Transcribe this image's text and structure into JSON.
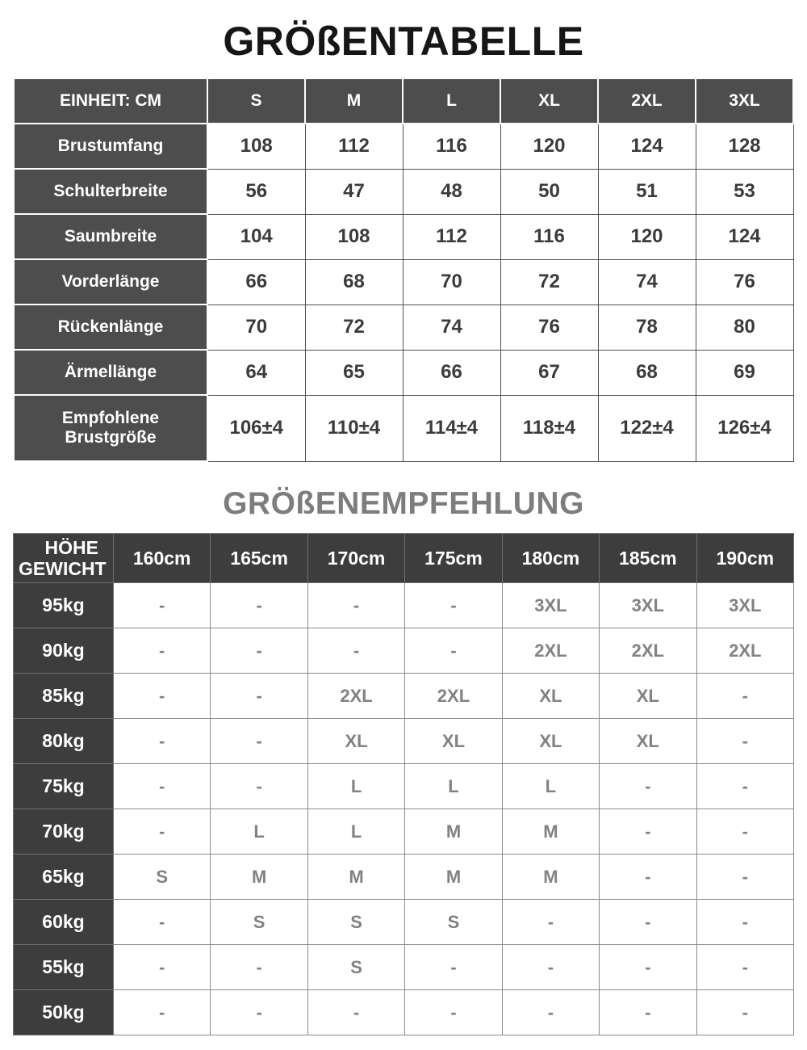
{
  "titles": {
    "size_table": "GRÖßENTABELLE",
    "recommendation": "GRÖßENEMPFEHLUNG"
  },
  "size_table": {
    "unit_label": "EINHEIT: CM",
    "columns": [
      "S",
      "M",
      "L",
      "XL",
      "2XL",
      "3XL"
    ],
    "rows": [
      {
        "label": "Brustumfang",
        "values": [
          "108",
          "112",
          "116",
          "120",
          "124",
          "128"
        ]
      },
      {
        "label": "Schulterbreite",
        "values": [
          "56",
          "47",
          "48",
          "50",
          "51",
          "53"
        ]
      },
      {
        "label": "Saumbreite",
        "values": [
          "104",
          "108",
          "112",
          "116",
          "120",
          "124"
        ]
      },
      {
        "label": "Vorderlänge",
        "values": [
          "66",
          "68",
          "70",
          "72",
          "74",
          "76"
        ]
      },
      {
        "label": "Rückenlänge",
        "values": [
          "70",
          "72",
          "74",
          "76",
          "78",
          "80"
        ]
      },
      {
        "label": "Ärmellänge",
        "values": [
          "64",
          "65",
          "66",
          "67",
          "68",
          "69"
        ]
      },
      {
        "label": "Empfohlene Brustgröße",
        "values": [
          "106±4",
          "110±4",
          "114±4",
          "118±4",
          "122±4",
          "126±4"
        ]
      }
    ]
  },
  "recommendation_table": {
    "corner_top": "HÖHE",
    "corner_bottom": "GEWICHT",
    "columns": [
      "160cm",
      "165cm",
      "170cm",
      "175cm",
      "180cm",
      "185cm",
      "190cm"
    ],
    "rows": [
      {
        "label": "95kg",
        "values": [
          "-",
          "-",
          "-",
          "-",
          "3XL",
          "3XL",
          "3XL"
        ]
      },
      {
        "label": "90kg",
        "values": [
          "-",
          "-",
          "-",
          "-",
          "2XL",
          "2XL",
          "2XL"
        ]
      },
      {
        "label": "85kg",
        "values": [
          "-",
          "-",
          "2XL",
          "2XL",
          "XL",
          "XL",
          "-"
        ]
      },
      {
        "label": "80kg",
        "values": [
          "-",
          "-",
          "XL",
          "XL",
          "XL",
          "XL",
          "-"
        ]
      },
      {
        "label": "75kg",
        "values": [
          "-",
          "-",
          "L",
          "L",
          "L",
          "-",
          "-"
        ]
      },
      {
        "label": "70kg",
        "values": [
          "-",
          "L",
          "L",
          "M",
          "M",
          "-",
          "-"
        ]
      },
      {
        "label": "65kg",
        "values": [
          "S",
          "M",
          "M",
          "M",
          "M",
          "-",
          "-"
        ]
      },
      {
        "label": "60kg",
        "values": [
          "-",
          "S",
          "S",
          "S",
          "-",
          "-",
          "-"
        ]
      },
      {
        "label": "55kg",
        "values": [
          "-",
          "-",
          "S",
          "-",
          "-",
          "-",
          "-"
        ]
      },
      {
        "label": "50kg",
        "values": [
          "-",
          "-",
          "-",
          "-",
          "-",
          "-",
          "-"
        ]
      }
    ]
  },
  "colors": {
    "title1_color": "#161616",
    "title2_color": "#7d7d7d",
    "dark1": "#4d4d4d",
    "dark2": "#3d3d3d",
    "cell_text1": "#3b3b3b",
    "cell_text2": "#828282",
    "border1": "#4f4f4f",
    "border2": "#8c8c8c",
    "gap1": "#fdfdfd",
    "gap2": "#6f6f6f",
    "header_text": "#ffffff"
  }
}
